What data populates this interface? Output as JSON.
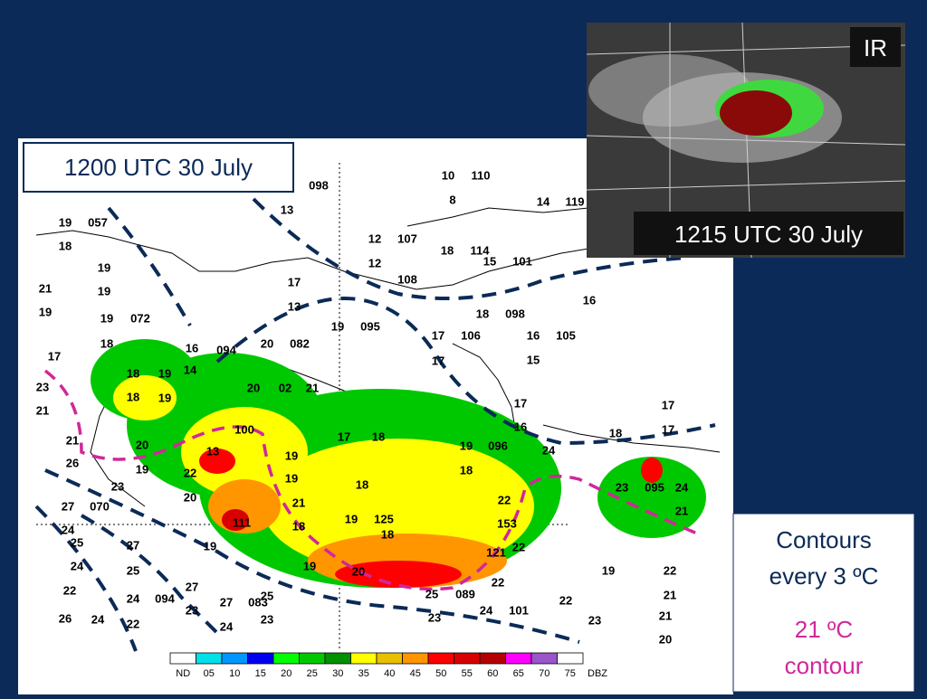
{
  "map_title": "1200 UTC 30 July",
  "inset": {
    "badge": "IR",
    "time": "1215 UTC 30 July"
  },
  "note": {
    "line1": "Contours",
    "line2": "every 3 ºC",
    "highlight1": "21 ºC",
    "highlight2": "contour"
  },
  "scale": {
    "unit": "DBZ",
    "labels": [
      "ND",
      "05",
      "10",
      "15",
      "20",
      "25",
      "30",
      "35",
      "40",
      "45",
      "50",
      "55",
      "60",
      "65",
      "70",
      "75"
    ],
    "colors": [
      "#ffffff",
      "#00e0e8",
      "#0096ff",
      "#0000f0",
      "#00ff00",
      "#00c800",
      "#009000",
      "#ffff00",
      "#e8c000",
      "#ff9600",
      "#ff0000",
      "#d80000",
      "#b40000",
      "#ff00ff",
      "#9955c9",
      "#ffffff"
    ]
  },
  "stations": [
    "19",
    "057",
    "18",
    "19",
    "21",
    "19",
    "19",
    "19",
    "072",
    "18",
    "17",
    "23",
    "21",
    "21",
    "20",
    "26",
    "19",
    "22",
    "23",
    "20",
    "27",
    "070",
    "24",
    "25",
    "27",
    "19",
    "24",
    "25",
    "22",
    "27",
    "24",
    "094",
    "26",
    "24",
    "22",
    "23",
    "27",
    "083",
    "25",
    "23",
    "24",
    "098",
    "13",
    "10",
    "110",
    "8",
    "14",
    "119",
    "12",
    "107",
    "12",
    "18",
    "114",
    "15",
    "101",
    "108",
    "17",
    "13",
    "16",
    "18",
    "098",
    "19",
    "095",
    "20",
    "082",
    "17",
    "106",
    "16",
    "105",
    "17",
    "15",
    "17",
    "16",
    "17",
    "17",
    "18",
    "24",
    "19",
    "096",
    "18",
    "23",
    "095",
    "19",
    "22",
    "22",
    "21",
    "23",
    "21",
    "20",
    "16",
    "094",
    "18",
    "19",
    "14",
    "20",
    "02",
    "21",
    "18",
    "19",
    "100",
    "13",
    "19",
    "17",
    "18",
    "19",
    "18",
    "21",
    "18",
    "19",
    "125",
    "18",
    "19",
    "20",
    "22",
    "153",
    "22",
    "121",
    "22",
    "25",
    "089",
    "101",
    "24",
    "23",
    "24",
    "21",
    "111"
  ]
}
